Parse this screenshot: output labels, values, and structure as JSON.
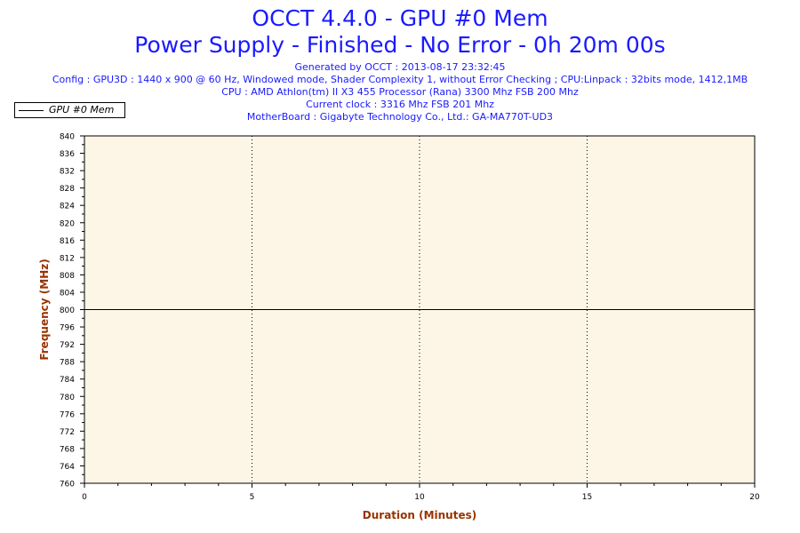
{
  "header": {
    "title_line1": "OCCT 4.4.0 - GPU #0 Mem",
    "title_line2": "Power Supply - Finished - No Error - 0h 20m 00s",
    "generated": "Generated by OCCT : 2013-08-17 23:32:45",
    "config": "Config : GPU3D : 1440 x 900 @ 60 Hz, Windowed mode, Shader Complexity 1, without Error Checking ; CPU:Linpack : 32bits mode, 1412,1MB",
    "cpu": "CPU : AMD Athlon(tm) II X3 455 Processor (Rana) 3300 Mhz FSB 200 Mhz",
    "clock": "Current clock : 3316 Mhz FSB 201 Mhz",
    "motherboard": "MotherBoard : Gigabyte Technology Co., Ltd.: GA-MA770T-UD3"
  },
  "chart_data": {
    "type": "line",
    "xlabel": "Duration (Minutes)",
    "ylabel": "Frequency (MHz)",
    "xlim": [
      0,
      20
    ],
    "ylim": [
      760,
      840
    ],
    "x_ticks": [
      0,
      5,
      10,
      15,
      20
    ],
    "y_ticks": [
      760,
      764,
      768,
      772,
      776,
      780,
      784,
      788,
      792,
      796,
      800,
      804,
      808,
      812,
      816,
      820,
      824,
      828,
      832,
      836,
      840
    ],
    "grid": "vertical dotted at major x ticks",
    "legend_position": "top-left",
    "series": [
      {
        "name": "GPU #0 Mem",
        "x": [
          0,
          20
        ],
        "values": [
          800,
          800
        ]
      }
    ]
  },
  "colors": {
    "title": "#1a1aff",
    "axis_label": "#993300",
    "plot_background": "#fdf6e7",
    "series_line": "#000000"
  }
}
